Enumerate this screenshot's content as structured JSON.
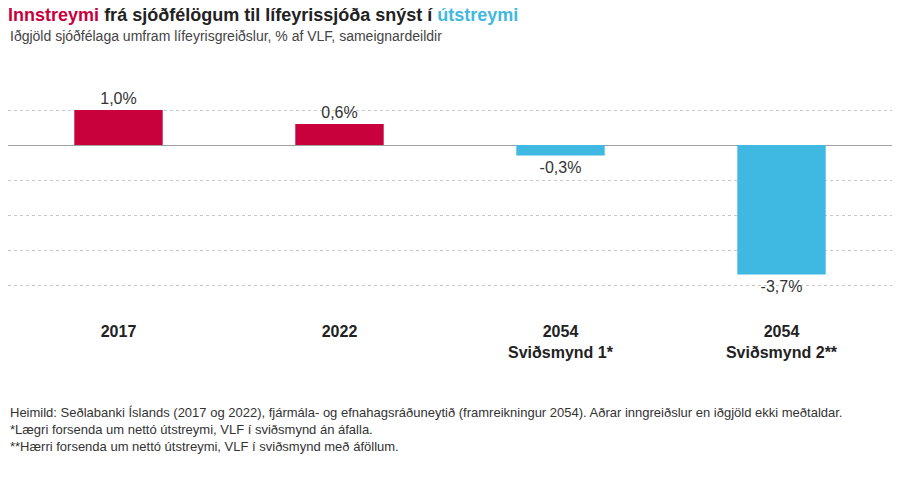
{
  "chart_data": {
    "type": "bar",
    "title": [
      {
        "text": "Innstreymi",
        "color": "#c8003c"
      },
      {
        "text": " frá sjóðfélögum til lífeyrissjóða snýst í ",
        "color": "#222222"
      },
      {
        "text": "útstreymi",
        "color": "#3fb8e2"
      }
    ],
    "subtitle": "Iðgjöld sjóðfélaga umfram lífeyrisgreiðslur, % af VLF, sameignardeildir",
    "categories": [
      "2017",
      "2022",
      "2054\nSviðsmynd 1*",
      "2054\nSviðsmynd 2**"
    ],
    "values": [
      1.0,
      0.6,
      -0.3,
      -3.7
    ],
    "value_labels": [
      "1,0%",
      "0,6%",
      "-0,3%",
      "-3,7%"
    ],
    "colors": [
      "#c8003c",
      "#c8003c",
      "#3fb8e2",
      "#3fb8e2"
    ],
    "data_labels": true,
    "ylim": [
      -5,
      2
    ],
    "yticks": [
      -5,
      -4,
      -3,
      -2,
      -1,
      0,
      1,
      2
    ],
    "grid": true,
    "tick_labels": "x",
    "notes": [
      "Heimild: Seðlabanki Íslands (2017 og 2022), fjármála- og efnahagsráðuneytið (framreikningur 2054). Aðrar inngreiðslur en iðgjöld ekki meðtaldar.",
      "*Lægri forsenda um nettó útstreymi, VLF í sviðsmynd án áfalla.",
      "**Hærri forsenda um nettó útstreymi, VLF í sviðsmynd með áföllum."
    ]
  }
}
